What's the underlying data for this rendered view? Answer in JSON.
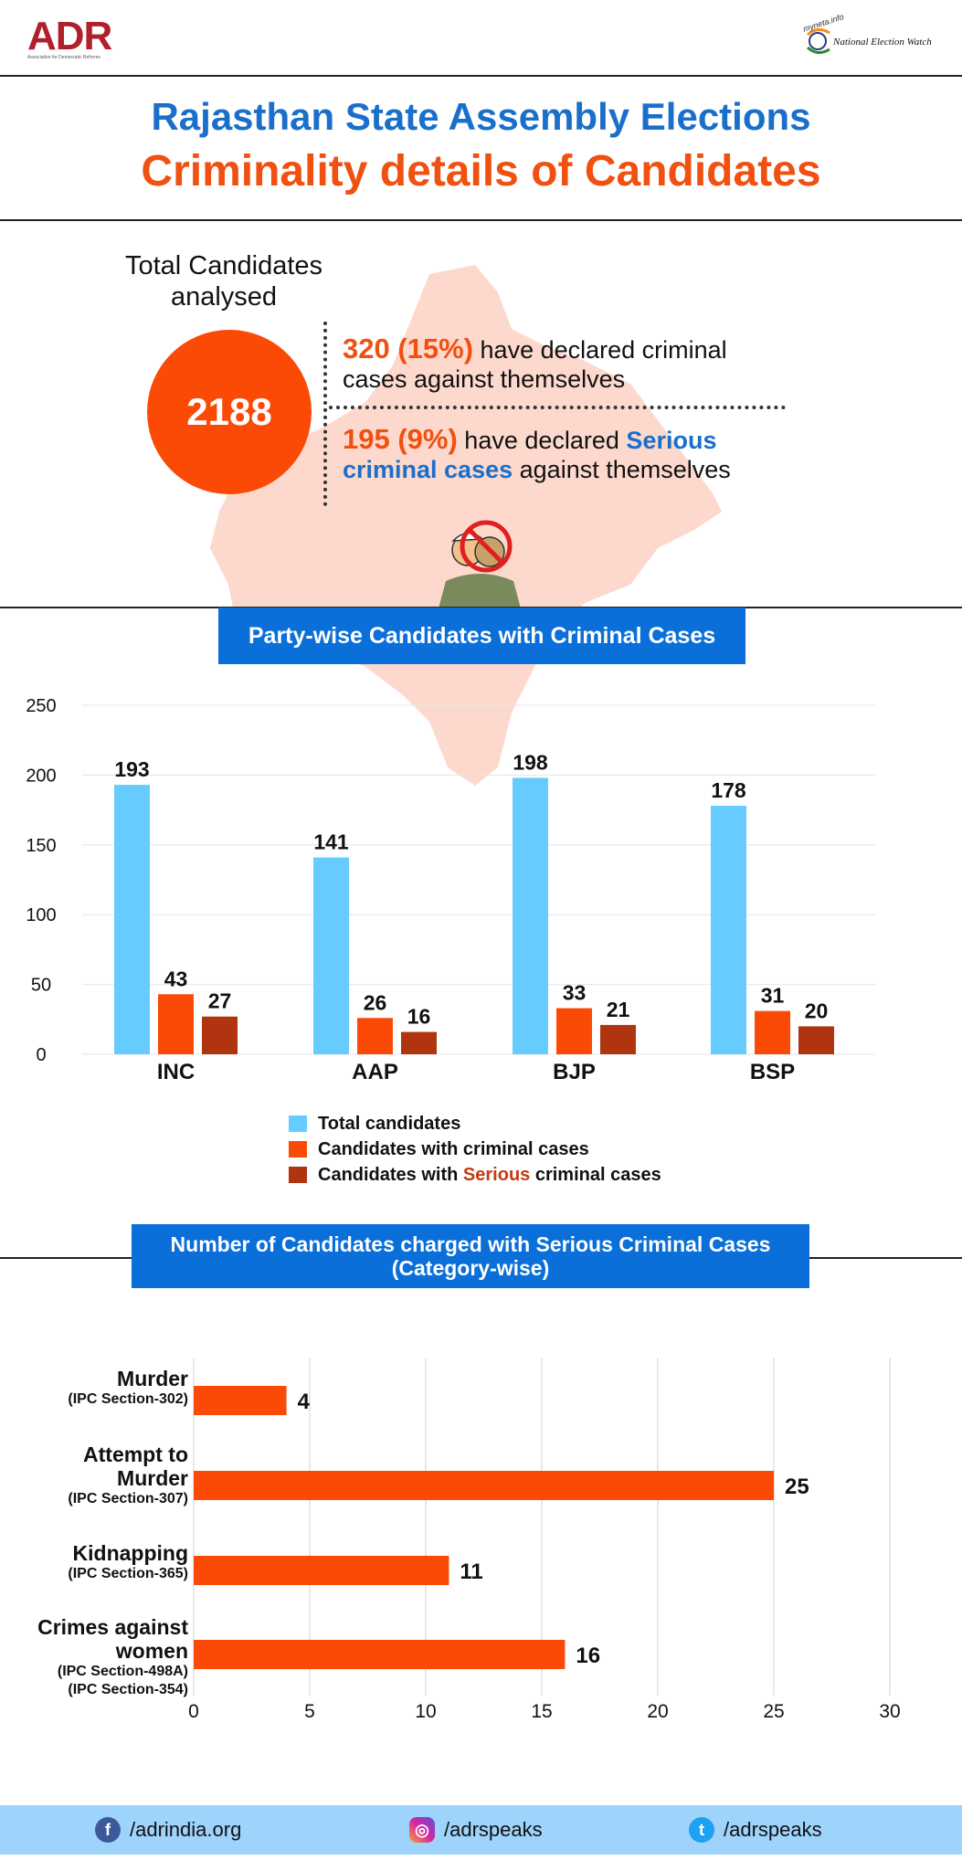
{
  "header": {
    "adr_logo": "ADR",
    "adr_tagline": "Association for Democratic Reforms",
    "myneta_logo": "myneta.info",
    "new_logo": "National Election Watch",
    "title_line1": "Rajasthan State Assembly Elections",
    "title_line2": "Criminality details of Candidates"
  },
  "summary": {
    "total_label_line1": "Total Candidates",
    "total_label_line2": "analysed",
    "total_value": "2188",
    "stat1_highlight": "320 (15%)",
    "stat1_text_a": " have declared criminal",
    "stat1_text_b": "cases against themselves",
    "stat2_highlight": "195 (9%)",
    "stat2_text_a": " have declared ",
    "stat2_serious_a": "Serious",
    "stat2_serious_b": "criminal cases",
    "stat2_text_b": " against themselves"
  },
  "party_banner": "Party-wise Candidates with Criminal Cases",
  "category_banner_line1": "Number of Candidates charged with Serious Criminal Cases",
  "category_banner_line2": "(Category-wise)",
  "legend": {
    "total": "Total candidates",
    "criminal": "Candidates with criminal cases",
    "serious_prefix": "Candidates with ",
    "serious_word": "Serious",
    "serious_suffix": " criminal cases"
  },
  "colors": {
    "total": "#66ccff",
    "criminal": "#fb4a06",
    "serious": "#b03410",
    "hbar": "#fb4a06",
    "map": "#fdd9cd"
  },
  "chart_data": [
    {
      "type": "bar",
      "categories": [
        "INC",
        "AAP",
        "BJP",
        "BSP"
      ],
      "series": [
        {
          "name": "Total candidates",
          "values": [
            193,
            141,
            198,
            178
          ]
        },
        {
          "name": "Candidates with criminal cases",
          "values": [
            43,
            26,
            33,
            31
          ]
        },
        {
          "name": "Candidates with Serious criminal cases",
          "values": [
            27,
            16,
            21,
            20
          ]
        }
      ],
      "yticks": [
        "0",
        "50",
        "100",
        "150",
        "200",
        "250"
      ],
      "ylim": [
        0,
        250
      ],
      "grid": true,
      "legend": "bottom"
    },
    {
      "type": "bar",
      "orientation": "horizontal",
      "categories": [
        {
          "label": [
            "Murder"
          ],
          "sub": [
            "(IPC Section-302)"
          ]
        },
        {
          "label": [
            "Attempt to",
            "Murder"
          ],
          "sub": [
            "(IPC Section-307)"
          ]
        },
        {
          "label": [
            "Kidnapping"
          ],
          "sub": [
            "(IPC Section-365)"
          ]
        },
        {
          "label": [
            "Crimes against",
            "women"
          ],
          "sub": [
            "(IPC Section-498A)",
            "(IPC Section-354)"
          ]
        }
      ],
      "values": [
        4,
        25,
        11,
        16
      ],
      "xticks": [
        "0",
        "5",
        "10",
        "15",
        "20",
        "25",
        "30"
      ],
      "xlim": [
        0,
        30
      ],
      "grid": true
    }
  ],
  "footer": {
    "facebook": "/adrindia.org",
    "instagram": "/adrspeaks",
    "twitter": "/adrspeaks"
  }
}
